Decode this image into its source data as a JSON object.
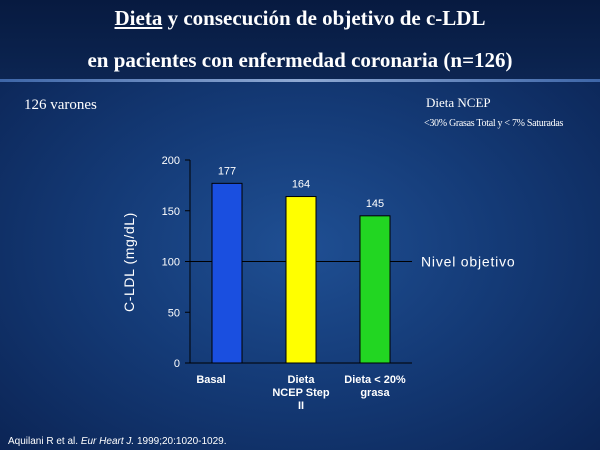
{
  "header": {
    "title_part1": "Dieta",
    "title_part2": " y consecución de objetivo de c-LDL",
    "title_line2": "en pacientes con enfermedad coronaria (n=126)"
  },
  "annotations": {
    "cohort": "126 varones",
    "diet_name": "Dieta NCEP",
    "diet_desc": "<30% Grasas Total y < 7% Saturadas"
  },
  "citation": {
    "authors": "Aquilani R et al. ",
    "journal": "Eur Heart J.",
    "details": " 1999;20:1020-1029."
  },
  "chart_data": {
    "type": "bar",
    "title": "Dieta y consecución de objetivo de c-LDL en pacientes con enfermedad coronaria (n=126)",
    "xlabel": "",
    "ylabel": "C-LDL (mg/dL)",
    "ylim": [
      0,
      200
    ],
    "yticks": [
      0,
      50,
      100,
      150,
      200
    ],
    "categories": [
      [
        "Basal"
      ],
      [
        "Dieta",
        "NCEP Step",
        "II"
      ],
      [
        "Dieta < 20%",
        "grasa"
      ]
    ],
    "values": [
      177,
      164,
      145
    ],
    "value_labels": [
      "177",
      "164",
      "145"
    ],
    "bar_colors": [
      "#1a4fe0",
      "#ffff00",
      "#22d622"
    ],
    "reference_line": {
      "value": 100,
      "label": "Nivel objetivo"
    },
    "grid": false,
    "legend": "none"
  }
}
